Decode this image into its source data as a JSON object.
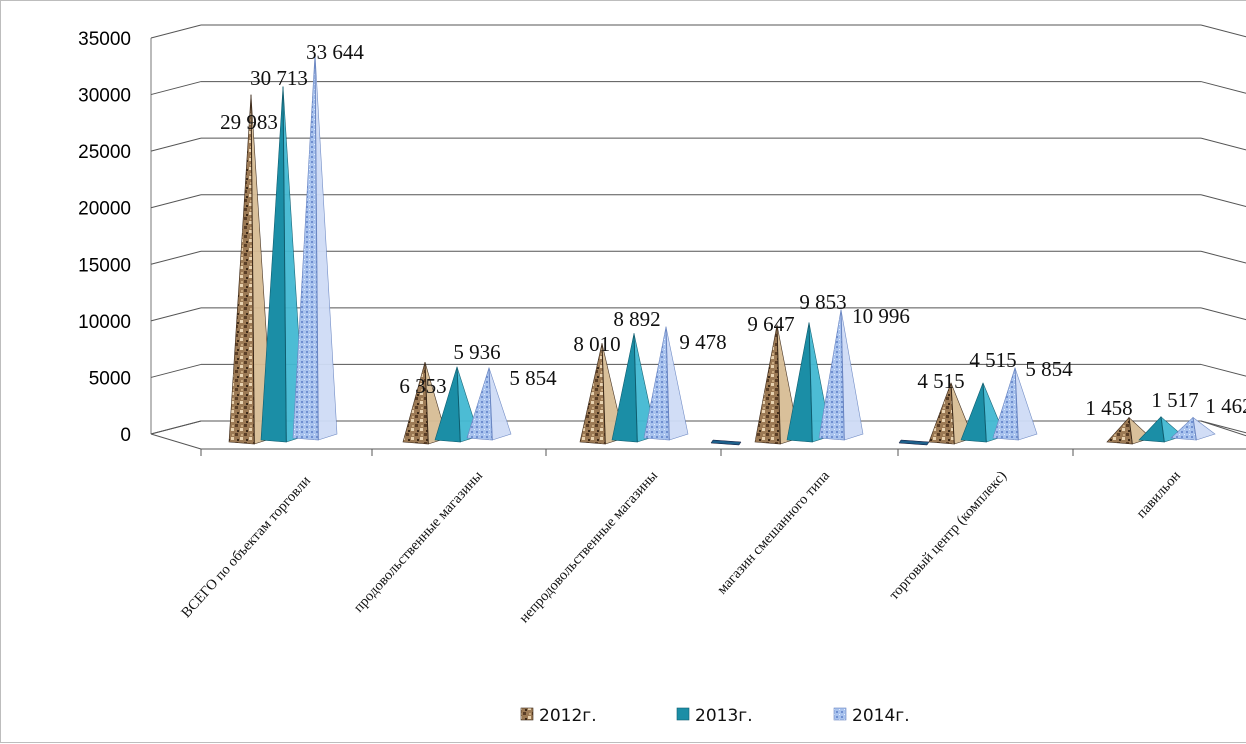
{
  "chart_data": {
    "type": "bar",
    "style": "3d-pyramid",
    "categories": [
      "ВСЕГО по объектам  торговли",
      "продовольственные магазины",
      "непродовольственные магазины",
      "магазин смешанного типа",
      "торговый центр (комплекс)",
      "павильон"
    ],
    "series": [
      {
        "name": "2012г.",
        "values": [
          29983,
          6353,
          8010,
          9647,
          4515,
          1458
        ],
        "labels": [
          "29 983",
          "6 353",
          "8 010",
          "9 647",
          "4 515",
          "1 458"
        ],
        "color": "#8a6a48"
      },
      {
        "name": "2013г.",
        "values": [
          30713,
          5936,
          8892,
          9853,
          4515,
          1517
        ],
        "labels": [
          "30 713",
          "5 936",
          "8 892",
          "9 853",
          "4 515",
          "1 517"
        ],
        "color": "#1b8ea6"
      },
      {
        "name": "2014г.",
        "values": [
          33644,
          5854,
          9478,
          10996,
          5854,
          1462
        ],
        "labels": [
          "33 644",
          "5 854",
          "9 478",
          "10 996",
          "5 854",
          "1 462"
        ],
        "color": "#9cb8e6"
      }
    ],
    "yticks": [
      "0",
      "5000",
      "10000",
      "15000",
      "20000",
      "25000",
      "30000",
      "35000"
    ],
    "ylim": [
      0,
      35000
    ],
    "grid": true,
    "legend_position": "bottom"
  }
}
